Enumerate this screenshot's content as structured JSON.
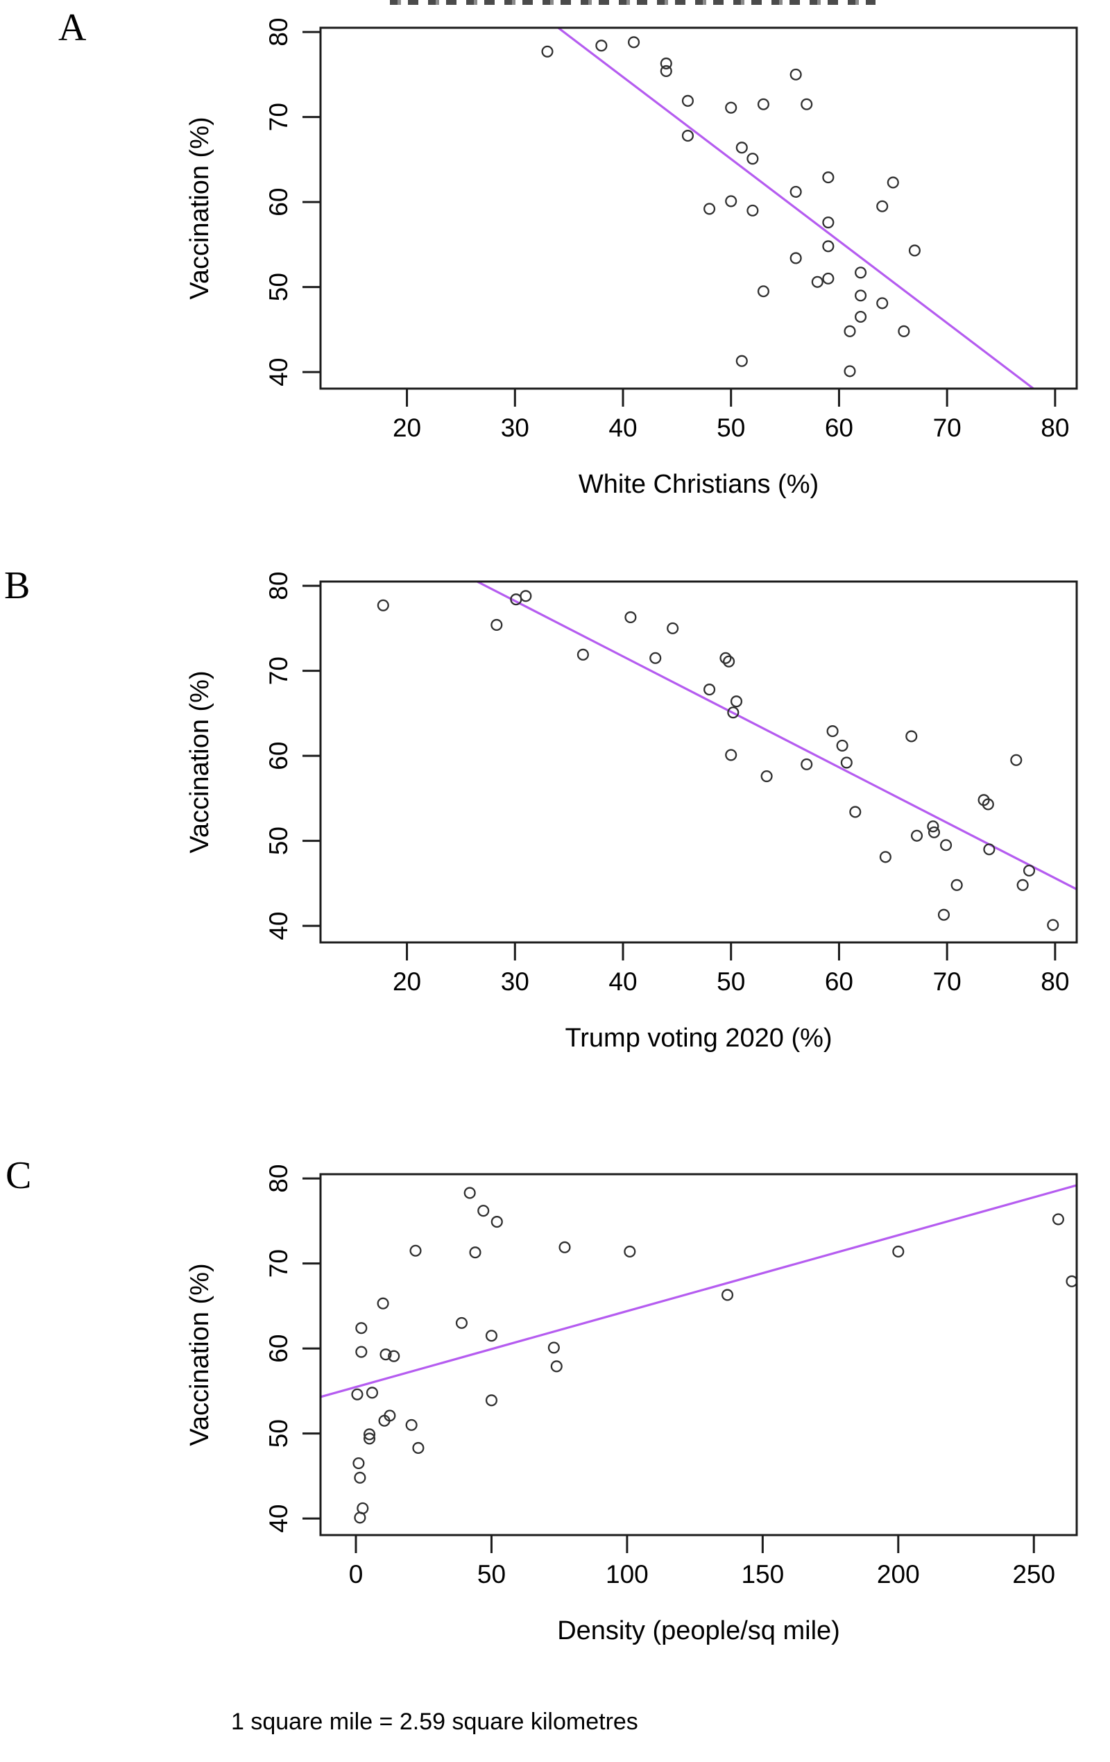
{
  "page": {
    "footnote": "1 square mile = 2.59 square kilometres",
    "background_color": "#ffffff"
  },
  "styles": {
    "trend_line_color": "#b55cf0",
    "point_stroke_color": "#2f2f2f",
    "axis_color": "#1c1c1c",
    "text_color": "#000000"
  },
  "chart_data": [
    {
      "id": "panel-a",
      "label": "A",
      "type": "scatter",
      "xlabel": "White Christians (%)",
      "ylabel": "Vaccination (%)",
      "xlim": [
        12,
        82
      ],
      "ylim": [
        38.05,
        80.5
      ],
      "x_ticks": [
        20,
        30,
        40,
        50,
        60,
        70,
        80
      ],
      "y_ticks": [
        40,
        50,
        60,
        70,
        80
      ],
      "grid": false,
      "legend": null,
      "trend_line": {
        "from": [
          34,
          80.5
        ],
        "to": [
          78,
          38.05
        ]
      },
      "points": [
        [
          33,
          77.7
        ],
        [
          38,
          78.4
        ],
        [
          41,
          78.8
        ],
        [
          44,
          76.3
        ],
        [
          44,
          75.4
        ],
        [
          56,
          75.0
        ],
        [
          46,
          71.9
        ],
        [
          53,
          71.5
        ],
        [
          57,
          71.5
        ],
        [
          50,
          71.1
        ],
        [
          46,
          67.8
        ],
        [
          51,
          66.4
        ],
        [
          52,
          65.1
        ],
        [
          59,
          62.9
        ],
        [
          65,
          62.3
        ],
        [
          56,
          61.2
        ],
        [
          50,
          60.1
        ],
        [
          64,
          59.5
        ],
        [
          48,
          59.2
        ],
        [
          52,
          59.0
        ],
        [
          59,
          57.6
        ],
        [
          59,
          54.8
        ],
        [
          67,
          54.3
        ],
        [
          56,
          53.4
        ],
        [
          62,
          51.7
        ],
        [
          59,
          51.0
        ],
        [
          58,
          50.6
        ],
        [
          53,
          49.5
        ],
        [
          62,
          49.0
        ],
        [
          64,
          48.1
        ],
        [
          62,
          46.5
        ],
        [
          61,
          44.8
        ],
        [
          66,
          44.8
        ],
        [
          51,
          41.3
        ],
        [
          61,
          40.1
        ]
      ]
    },
    {
      "id": "panel-b",
      "label": "B",
      "type": "scatter",
      "xlabel": "Trump voting 2020 (%)",
      "ylabel": "Vaccination (%)",
      "xlim": [
        12,
        82
      ],
      "ylim": [
        38.05,
        80.5
      ],
      "x_ticks": [
        20,
        30,
        40,
        50,
        60,
        70,
        80
      ],
      "y_ticks": [
        40,
        50,
        60,
        70,
        80
      ],
      "grid": false,
      "legend": null,
      "trend_line": {
        "from": [
          26.5,
          80.5
        ],
        "to": [
          82,
          44.3
        ]
      },
      "points": [
        [
          17.8,
          77.7
        ],
        [
          30.1,
          78.4
        ],
        [
          31,
          78.8
        ],
        [
          40.7,
          76.3
        ],
        [
          28.3,
          75.4
        ],
        [
          44.6,
          75.0
        ],
        [
          36.3,
          71.9
        ],
        [
          43,
          71.5
        ],
        [
          49.5,
          71.5
        ],
        [
          49.8,
          71.1
        ],
        [
          48,
          67.8
        ],
        [
          50.5,
          66.4
        ],
        [
          50.2,
          65.1
        ],
        [
          59.4,
          62.9
        ],
        [
          66.7,
          62.3
        ],
        [
          60.3,
          61.2
        ],
        [
          50,
          60.1
        ],
        [
          76.4,
          59.5
        ],
        [
          60.7,
          59.2
        ],
        [
          57,
          59.0
        ],
        [
          53.3,
          57.6
        ],
        [
          73.4,
          54.8
        ],
        [
          73.8,
          54.3
        ],
        [
          61.5,
          53.4
        ],
        [
          68.7,
          51.7
        ],
        [
          68.8,
          51.0
        ],
        [
          67.2,
          50.6
        ],
        [
          69.9,
          49.5
        ],
        [
          73.9,
          49.0
        ],
        [
          64.3,
          48.1
        ],
        [
          77.6,
          46.5
        ],
        [
          70.9,
          44.8
        ],
        [
          77,
          44.8
        ],
        [
          69.7,
          41.3
        ],
        [
          79.8,
          40.1
        ]
      ]
    },
    {
      "id": "panel-c",
      "label": "C",
      "type": "scatter",
      "xlabel": "Density (people/sq mile)",
      "ylabel": "Vaccination (%)",
      "xlim": [
        -13.05,
        265.8
      ],
      "ylim": [
        38.05,
        80.5
      ],
      "x_ticks": [
        0,
        50,
        100,
        150,
        200,
        250
      ],
      "y_ticks": [
        40,
        50,
        60,
        70,
        80
      ],
      "grid": false,
      "legend": null,
      "trend_line": {
        "from": [
          -13.05,
          54.3
        ],
        "to": [
          265.8,
          79.2
        ]
      },
      "points": [
        [
          42,
          78.3
        ],
        [
          47,
          76.2
        ],
        [
          52,
          74.9
        ],
        [
          22,
          71.5
        ],
        [
          44,
          71.3
        ],
        [
          77,
          71.9
        ],
        [
          101,
          71.4
        ],
        [
          200,
          71.4
        ],
        [
          259,
          75.2
        ],
        [
          264,
          67.9
        ],
        [
          137,
          66.3
        ],
        [
          10,
          65.3
        ],
        [
          2,
          62.4
        ],
        [
          39,
          63.0
        ],
        [
          50,
          61.5
        ],
        [
          2,
          59.6
        ],
        [
          11,
          59.3
        ],
        [
          14,
          59.1
        ],
        [
          73,
          60.1
        ],
        [
          74,
          57.9
        ],
        [
          0.5,
          54.6
        ],
        [
          6,
          54.8
        ],
        [
          50,
          53.9
        ],
        [
          12.5,
          52.1
        ],
        [
          10.5,
          51.5
        ],
        [
          20.5,
          51.0
        ],
        [
          5,
          49.9
        ],
        [
          5,
          49.4
        ],
        [
          23,
          48.3
        ],
        [
          1,
          46.5
        ],
        [
          1.5,
          44.8
        ],
        [
          2.5,
          41.2
        ],
        [
          1.5,
          40.1
        ]
      ]
    }
  ]
}
